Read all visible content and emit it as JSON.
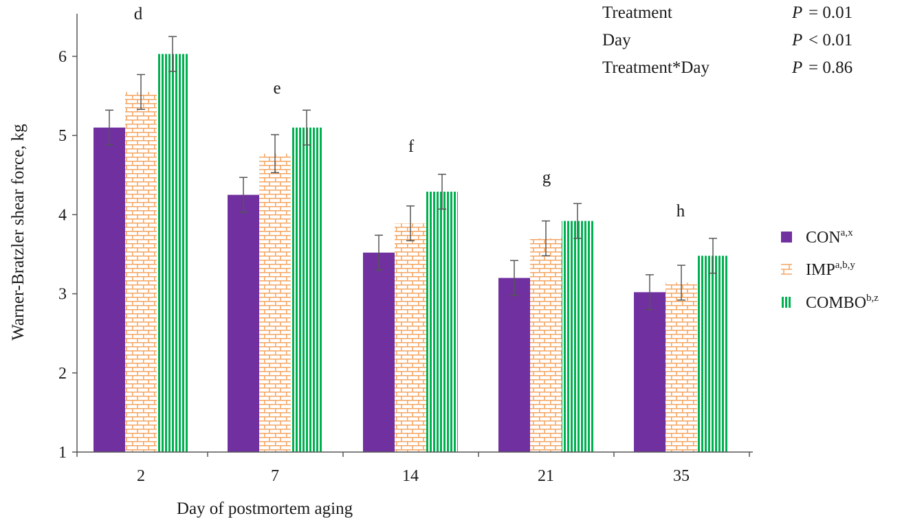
{
  "chart_data": {
    "type": "bar",
    "xlabel": "Day of postmortem aging",
    "ylabel": "Warner-Bratzler shear force, kg",
    "ylim": [
      1,
      6.5
    ],
    "yticks": [
      "1",
      "2",
      "3",
      "4",
      "5",
      "6"
    ],
    "categories": [
      "2",
      "7",
      "14",
      "21",
      "35"
    ],
    "category_letters": [
      "d",
      "e",
      "f",
      "g",
      "h"
    ],
    "series": [
      {
        "name": "CON",
        "superscript": "a,x",
        "color": "#7030a0",
        "pattern": "solid",
        "values": [
          5.1,
          4.25,
          3.52,
          3.2,
          3.02
        ],
        "error": [
          0.22,
          0.22,
          0.22,
          0.22,
          0.22
        ]
      },
      {
        "name": "IMP",
        "superscript": "a,b,y",
        "color": "#f4a460",
        "pattern": "brick",
        "values": [
          5.55,
          4.77,
          3.89,
          3.7,
          3.14
        ],
        "error": [
          0.22,
          0.24,
          0.22,
          0.22,
          0.22
        ]
      },
      {
        "name": "COMBO",
        "superscript": "b,z",
        "color": "#00b050",
        "pattern": "vertical-stripes",
        "values": [
          6.03,
          5.1,
          4.29,
          3.92,
          3.48
        ],
        "error": [
          0.22,
          0.22,
          0.22,
          0.22,
          0.22
        ]
      }
    ],
    "statistics": [
      {
        "label": "Treatment",
        "p_symbol": "P",
        "operator": "= 0.01"
      },
      {
        "label": "Day",
        "p_symbol": "P",
        "operator": "< 0.01"
      },
      {
        "label": "Treatment*Day",
        "p_symbol": "P",
        "operator": "= 0.86"
      }
    ],
    "legend_position": "right",
    "grid": false
  }
}
